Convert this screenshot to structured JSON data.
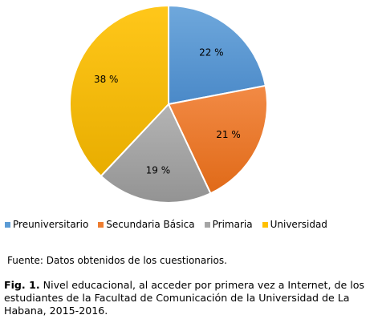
{
  "chart_data": {
    "type": "pie",
    "slices": [
      {
        "name": "Preuniversitario",
        "value": 22,
        "label": "22 %",
        "color": "#5b9bd5"
      },
      {
        "name": "Secundaria Básica",
        "value": 21,
        "label": "21 %",
        "color": "#ed7d31"
      },
      {
        "name": "Primaria",
        "value": 19,
        "label": "19 %",
        "color": "#a5a5a5"
      },
      {
        "name": "Universidad",
        "value": 38,
        "label": "38 %",
        "color": "#ffc000"
      }
    ],
    "legend_position": "bottom"
  },
  "legend": {
    "items": [
      {
        "label": "Preuniversitario",
        "color": "#5b9bd5"
      },
      {
        "label": "Secundaria Básica",
        "color": "#ed7d31"
      },
      {
        "label": "Primaria",
        "color": "#a5a5a5"
      },
      {
        "label": "Universidad",
        "color": "#ffc000"
      }
    ]
  },
  "source": "Fuente: Datos obtenidos de los cuestionarios.",
  "caption": {
    "label": "Fig. 1.",
    "text": " Nivel educacional, al acceder por primera vez a Internet, de los estudiantes de la Facultad de Comunicación de la Universidad de La Habana, 2015-2016."
  }
}
